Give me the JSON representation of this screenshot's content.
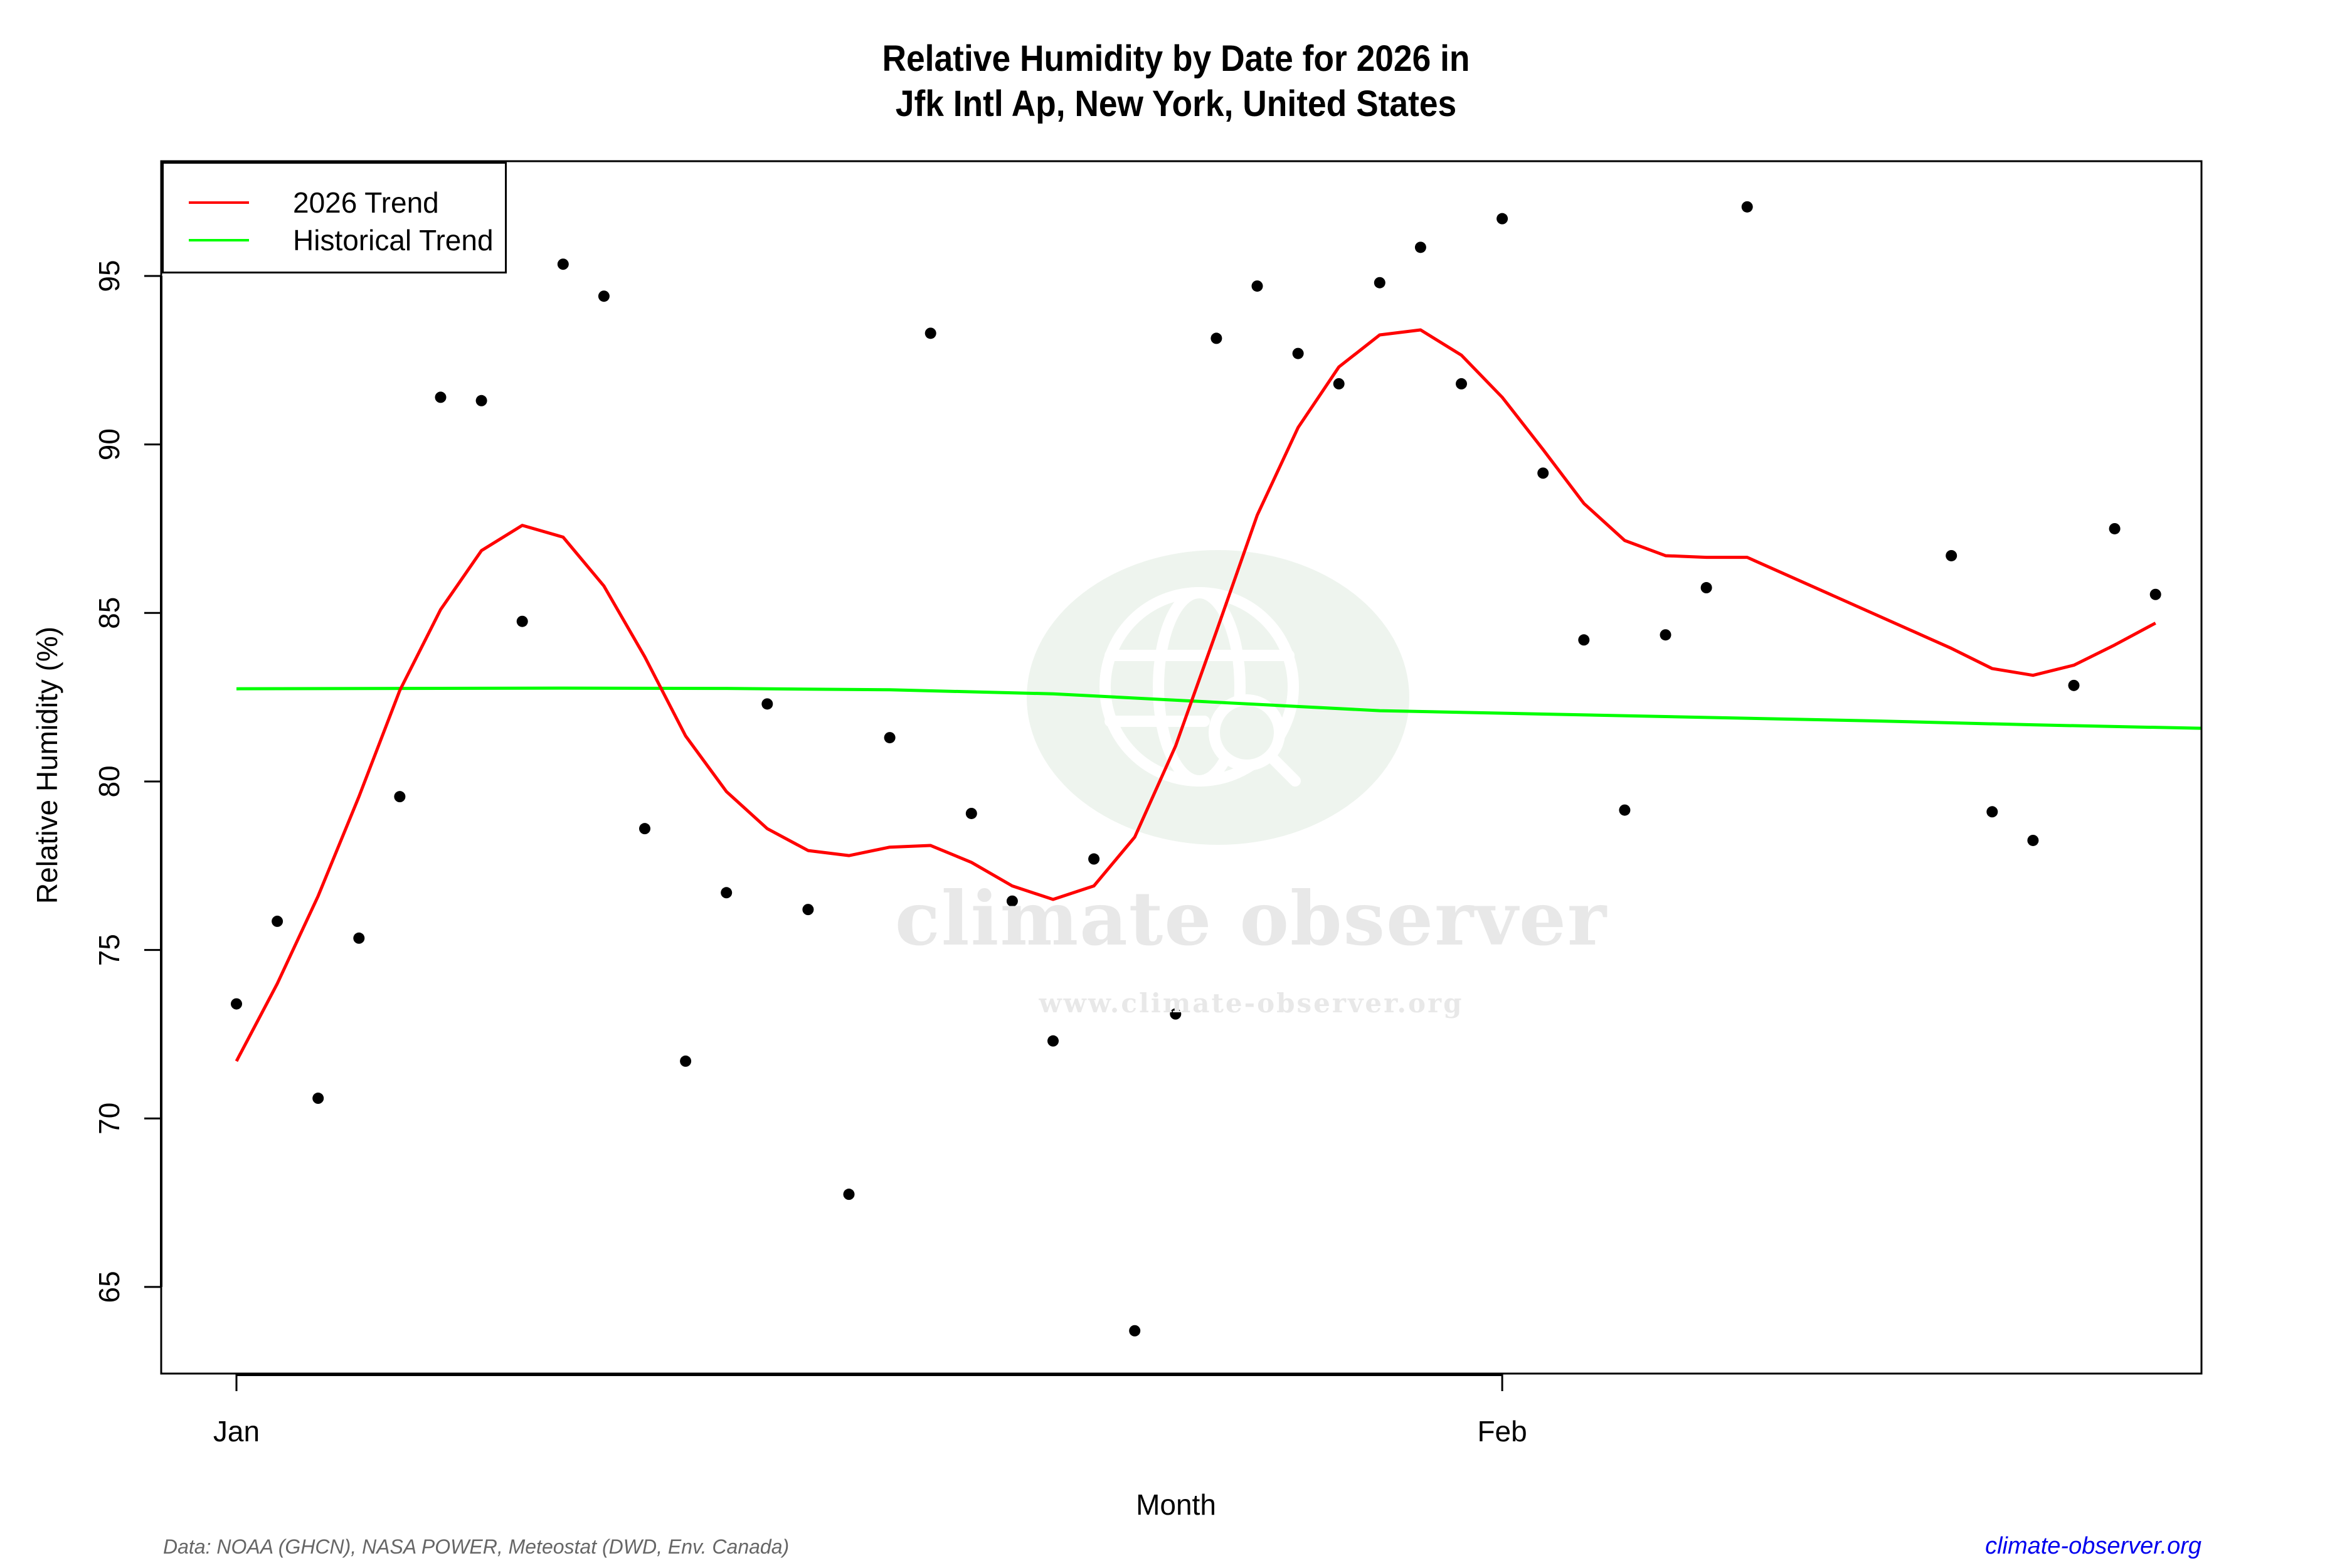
{
  "title": {
    "line1": "Relative Humidity by Date for 2026 in",
    "line2": "Jfk Intl Ap, New York, United States"
  },
  "axes": {
    "xlabel": "Month",
    "ylabel": "Relative Humidity (%)",
    "x_ticks": [
      {
        "label": "Jan",
        "day": 1
      },
      {
        "label": "Feb",
        "day": 32
      }
    ],
    "y_ticks": [
      65,
      70,
      75,
      80,
      85,
      90,
      95
    ]
  },
  "legend": {
    "items": [
      {
        "label": "2026 Trend",
        "color": "#ff0000"
      },
      {
        "label": "Historical Trend",
        "color": "#00ff00"
      }
    ]
  },
  "watermark": {
    "name": "climate observer",
    "url": "www.climate-observer.org"
  },
  "footer": {
    "source": "Data: NOAA (GHCN), NASA POWER, Meteostat (DWD, Env. Canada)",
    "link": "climate-observer.org"
  },
  "colors": {
    "trend_2026": "#ff0000",
    "historical": "#00ff00",
    "points": "#000000",
    "link": "#0000ee",
    "watermark_circle": "#eef4ee"
  },
  "chart_data": {
    "type": "scatter",
    "title": "Relative Humidity by Date for 2026 in Jfk Intl Ap, New York, United States",
    "xlabel": "Month",
    "ylabel": "Relative Humidity (%)",
    "x_tick_labels": [
      "Jan",
      "Feb"
    ],
    "ylim": [
      62.5,
      98.5
    ],
    "xlim_days": [
      -0.8,
      56.5
    ],
    "grid": false,
    "legend_position": "top-left",
    "points": {
      "name": "Daily Relative Humidity 2026",
      "day_of_year": [
        1,
        2,
        3,
        4,
        5,
        6,
        7,
        8,
        9,
        10,
        11,
        12,
        13,
        14,
        15,
        16,
        17,
        18,
        19,
        20,
        21,
        22,
        23,
        24,
        25,
        26,
        27,
        28,
        29,
        30,
        31,
        32,
        33,
        34,
        35,
        36,
        37,
        38,
        43,
        44,
        45,
        46,
        47,
        48
      ],
      "values": [
        73.4,
        75.85,
        70.6,
        75.35,
        79.55,
        91.4,
        91.3,
        84.75,
        95.35,
        94.4,
        78.6,
        71.7,
        76.7,
        82.3,
        76.2,
        67.75,
        81.3,
        93.3,
        79.05,
        76.45,
        72.3,
        77.7,
        63.7,
        73.1,
        93.15,
        94.7,
        92.7,
        91.8,
        94.8,
        95.85,
        91.8,
        96.7,
        89.15,
        84.2,
        79.15,
        84.35,
        85.75,
        97.05,
        86.7,
        79.1,
        78.25,
        82.85,
        87.5,
        85.55
      ]
    },
    "series": [
      {
        "name": "2026 Trend",
        "color": "#ff0000",
        "day_of_year": [
          1,
          2,
          3,
          4,
          5,
          6,
          7,
          8,
          9,
          10,
          11,
          12,
          13,
          14,
          15,
          16,
          17,
          18,
          19,
          20,
          21,
          22,
          23,
          24,
          25,
          26,
          27,
          28,
          29,
          30,
          31,
          32,
          33,
          34,
          35,
          36,
          37,
          38,
          43,
          44,
          45,
          46,
          47,
          48
        ],
        "values": [
          71.7,
          74.0,
          76.6,
          79.55,
          82.7,
          85.1,
          86.85,
          87.6,
          87.25,
          85.8,
          83.7,
          81.35,
          79.7,
          78.6,
          77.95,
          77.8,
          78.05,
          78.1,
          77.6,
          76.9,
          76.5,
          76.9,
          78.35,
          81.05,
          84.45,
          87.9,
          90.5,
          92.3,
          93.25,
          93.4,
          92.65,
          91.4,
          89.85,
          88.25,
          87.15,
          86.7,
          86.65,
          86.65,
          83.95,
          83.35,
          83.15,
          83.45,
          84.05,
          84.7
        ]
      },
      {
        "name": "Historical Trend",
        "color": "#00ff00",
        "day_of_year": [
          1,
          5,
          9,
          13,
          17,
          21,
          25,
          29,
          33,
          37,
          41,
          45,
          49,
          53,
          56.5
        ],
        "values": [
          82.75,
          82.76,
          82.77,
          82.76,
          82.72,
          82.6,
          82.35,
          82.1,
          82.0,
          81.9,
          81.8,
          81.68,
          81.58,
          81.5,
          81.42
        ]
      }
    ]
  }
}
